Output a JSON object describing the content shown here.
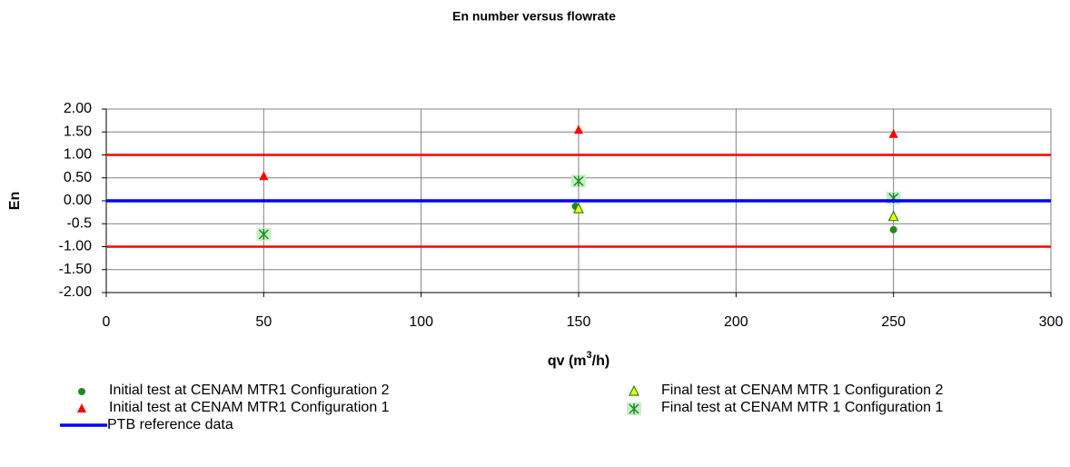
{
  "chart_data": {
    "type": "scatter",
    "title": "En number versus flowrate",
    "x_label": "qv (m",
    "x_label_sup": "3",
    "x_label_end": "/h)",
    "y_label": "En",
    "xlim": [
      0,
      300
    ],
    "xticks": [
      0,
      50,
      100,
      150,
      200,
      250,
      300
    ],
    "ylim": [
      -2,
      2
    ],
    "yticks": [
      {
        "value": 2,
        "label": "2.00"
      },
      {
        "value": 1.5,
        "label": "1.50"
      },
      {
        "value": 1,
        "label": "1.00"
      },
      {
        "value": 0.5,
        "label": "0.50"
      },
      {
        "value": 0,
        "label": "0.00"
      },
      {
        "value": -0.5,
        "label": "-0.5"
      },
      {
        "value": -1,
        "label": "-1.00"
      },
      {
        "value": -1.5,
        "label": "-1.50"
      },
      {
        "value": -2,
        "label": "-2.00"
      }
    ],
    "grid": true,
    "limit_lines": {
      "color": "#ff0000",
      "values": [
        1,
        -1
      ]
    },
    "series": [
      {
        "name": "Initial test at CENAM MTR1 Configuration 2",
        "marker": "circle",
        "color": "#1f8a1f",
        "x": [
          50,
          149,
          250
        ],
        "values": [
          -0.7,
          -0.12,
          -0.63
        ]
      },
      {
        "name": "Final test at CENAM MTR 1 Configuration 2",
        "marker": "triangle-open",
        "color": "#ffff00",
        "x": [
          50,
          150,
          250
        ],
        "values": [
          -0.73,
          -0.18,
          -0.35
        ]
      },
      {
        "name": "Initial test at CENAM MTR1 Configuration 1",
        "marker": "triangle",
        "color": "#ff0000",
        "x": [
          50,
          150,
          250
        ],
        "values": [
          0.53,
          1.54,
          1.45
        ]
      },
      {
        "name": "Final test at CENAM MTR 1 Configuration 1",
        "marker": "asterisk",
        "color": "#1f8a1f",
        "x": [
          50,
          150,
          250
        ],
        "values": [
          -0.73,
          0.43,
          0.06
        ]
      },
      {
        "name": "PTB reference data",
        "marker": "line",
        "color": "#0000ff",
        "x": [
          0,
          300
        ],
        "values": [
          0,
          0
        ]
      }
    ]
  }
}
